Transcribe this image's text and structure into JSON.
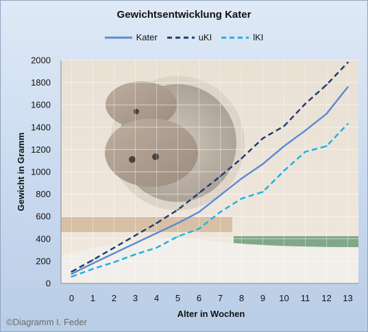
{
  "chart_data": {
    "type": "line",
    "title": "Gewichtsentwicklung Kater",
    "xlabel": "Alter in Wochen",
    "ylabel": "Gewicht in Gramm",
    "ylim": [
      0,
      2000
    ],
    "yticks": [
      0,
      200,
      400,
      600,
      800,
      1000,
      1200,
      1400,
      1600,
      1800,
      2000
    ],
    "x": [
      0,
      1,
      2,
      3,
      4,
      5,
      6,
      7,
      8,
      9,
      10,
      11,
      12,
      13
    ],
    "grid": true,
    "legend_position": "top",
    "series": [
      {
        "name": "Kater",
        "style": "solid",
        "color": "#5b8cd0",
        "values": [
          85,
          180,
          270,
          360,
          450,
          540,
          640,
          790,
          940,
          1070,
          1230,
          1370,
          1520,
          1760
        ]
      },
      {
        "name": "uKI",
        "style": "dash",
        "color": "#1f3c6e",
        "values": [
          105,
          210,
          320,
          430,
          540,
          660,
          810,
          960,
          1120,
          1300,
          1410,
          1610,
          1780,
          1980
        ]
      },
      {
        "name": "lKI",
        "style": "dash",
        "color": "#1ab2e6",
        "values": [
          60,
          130,
          190,
          260,
          320,
          420,
          490,
          640,
          760,
          820,
          1010,
          1180,
          1230,
          1430
        ]
      }
    ]
  },
  "credit": "©Diagramm I. Feder"
}
